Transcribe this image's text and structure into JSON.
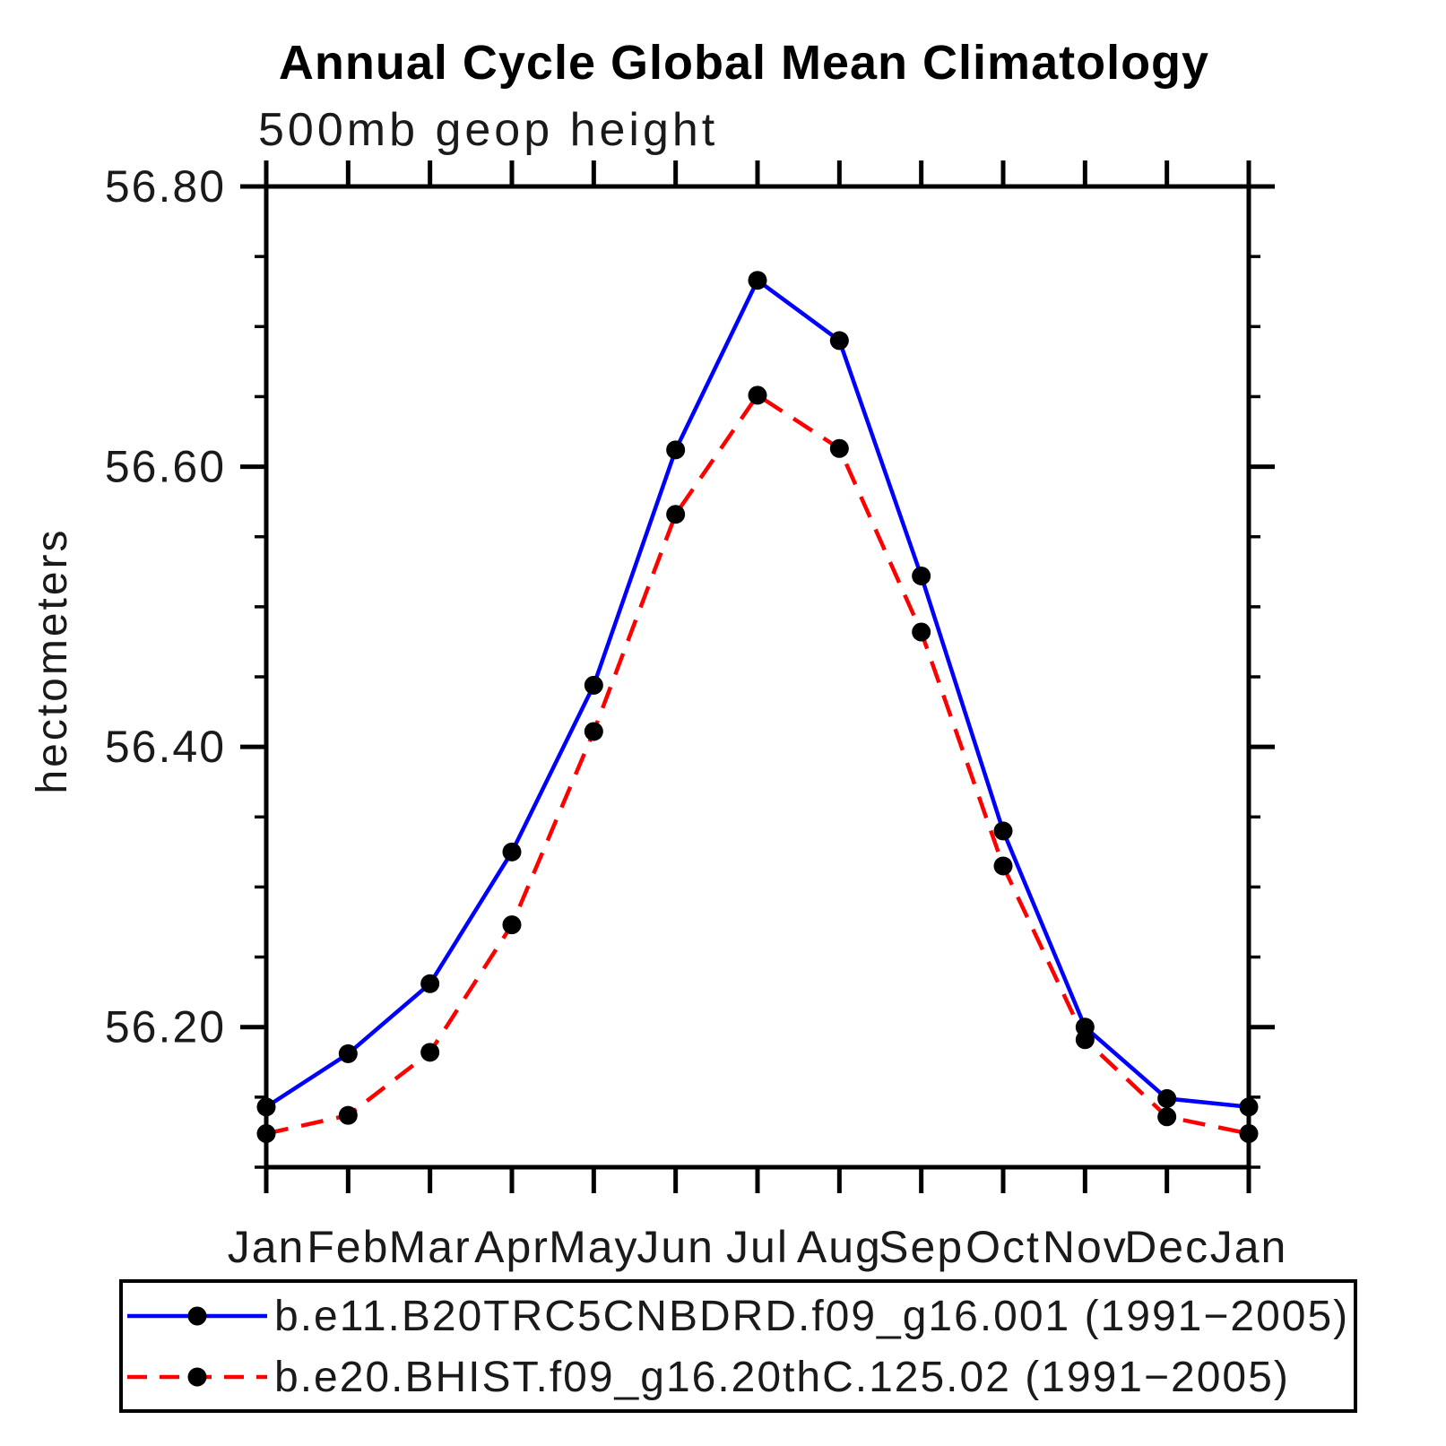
{
  "chart_data": {
    "type": "line",
    "title": "Annual Cycle Global Mean Climatology",
    "subtitle": "500mb geop height",
    "ylabel": "hectometers",
    "categories": [
      "Jan",
      "Feb",
      "Mar",
      "Apr",
      "May",
      "Jun",
      "Jul",
      "Aug",
      "Sep",
      "Oct",
      "Nov",
      "Dec",
      "Jan"
    ],
    "yaxis": {
      "min": 56.1,
      "max": 56.8,
      "minor_step": 0.05,
      "major_step": 0.2,
      "major_values": [
        56.2,
        56.4,
        56.6,
        56.8
      ],
      "major_labels": [
        "56.20",
        "56.40",
        "56.60",
        "56.80"
      ]
    },
    "grid": "off",
    "legend_position": "bottom",
    "series": [
      {
        "name": "b.e11.B20TRC5CNBDRD.f09_g16.001 (1991−2005)",
        "color": "#0000ff",
        "line_style": "solid",
        "marker": "circle",
        "marker_color": "#000000",
        "values": [
          56.143,
          56.181,
          56.231,
          56.325,
          56.444,
          56.612,
          56.733,
          56.69,
          56.522,
          56.34,
          56.2,
          56.149,
          56.143
        ]
      },
      {
        "name": "b.e20.BHIST.f09_g16.20thC.125.02 (1991−2005)",
        "color": "#ff0000",
        "line_style": "dashed",
        "marker": "circle",
        "marker_color": "#000000",
        "values": [
          56.124,
          56.137,
          56.182,
          56.273,
          56.411,
          56.566,
          56.651,
          56.613,
          56.482,
          56.315,
          56.191,
          56.136,
          56.124
        ]
      }
    ]
  }
}
